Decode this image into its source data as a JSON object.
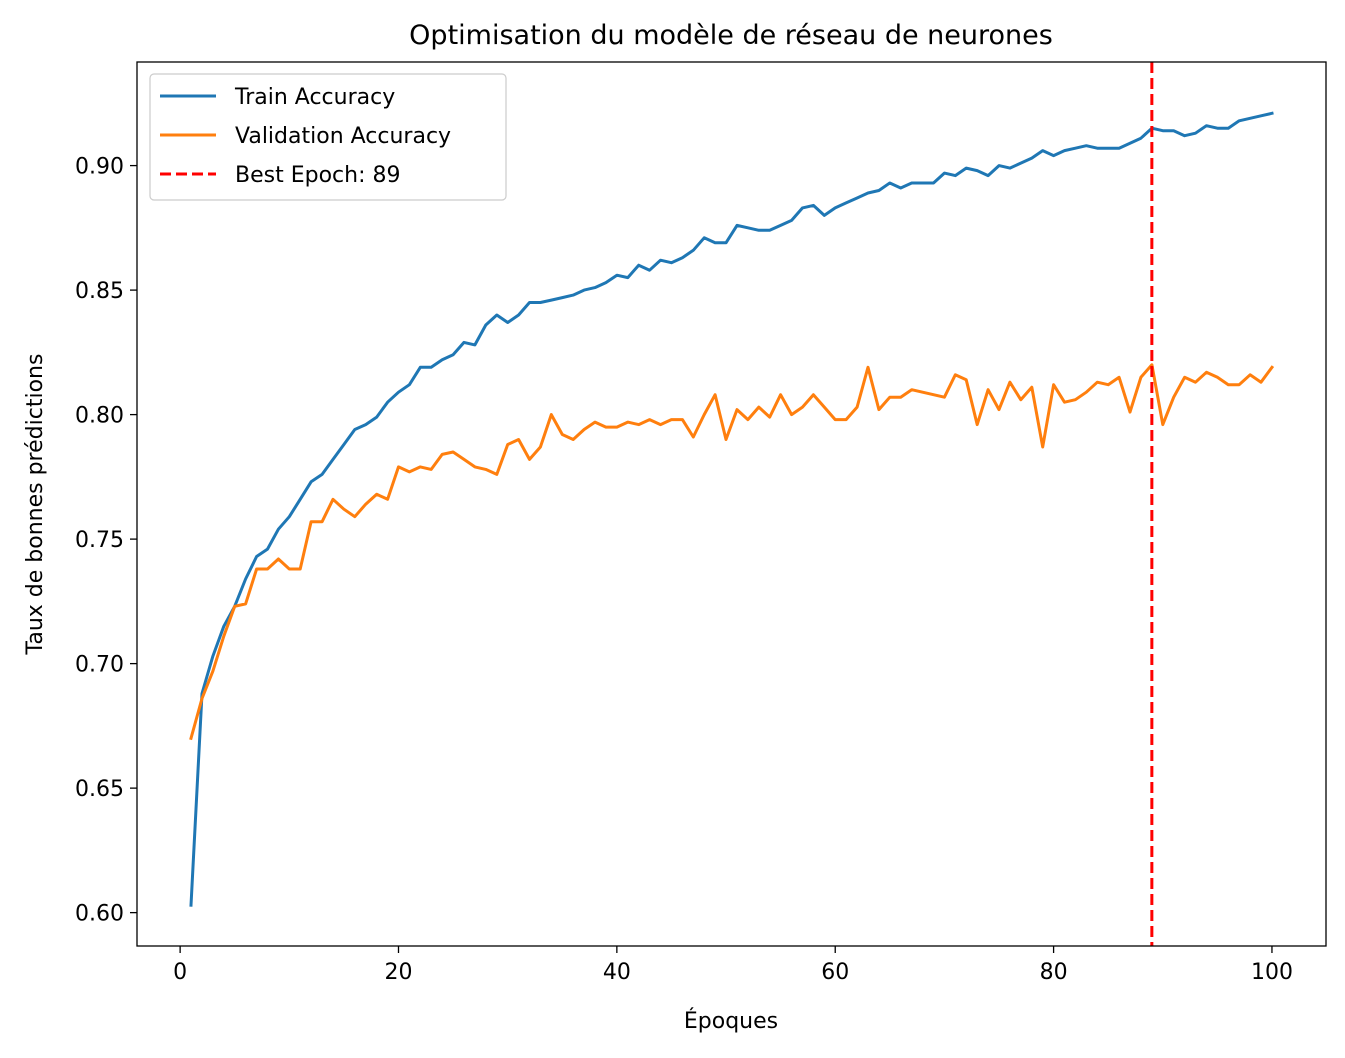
{
  "chart_data": {
    "type": "line",
    "title": "Optimisation du modèle de réseau de neurones",
    "xlabel": "Époques",
    "ylabel": "Taux de bonnes prédictions",
    "xlim": [
      -3.95,
      104.95
    ],
    "ylim": [
      0.5866,
      0.9416
    ],
    "xticks": [
      0,
      20,
      40,
      60,
      80,
      100
    ],
    "xtick_labels": [
      "0",
      "20",
      "40",
      "60",
      "80",
      "100"
    ],
    "yticks": [
      0.6,
      0.65,
      0.7,
      0.75,
      0.8,
      0.85,
      0.9
    ],
    "ytick_labels": [
      "0.60",
      "0.65",
      "0.70",
      "0.75",
      "0.80",
      "0.85",
      "0.90"
    ],
    "grid": false,
    "legend_position": "top-left",
    "x": [
      1,
      2,
      3,
      4,
      5,
      6,
      7,
      8,
      9,
      10,
      11,
      12,
      13,
      14,
      15,
      16,
      17,
      18,
      19,
      20,
      21,
      22,
      23,
      24,
      25,
      26,
      27,
      28,
      29,
      30,
      31,
      32,
      33,
      34,
      35,
      36,
      37,
      38,
      39,
      40,
      41,
      42,
      43,
      44,
      45,
      46,
      47,
      48,
      49,
      50,
      51,
      52,
      53,
      54,
      55,
      56,
      57,
      58,
      59,
      60,
      61,
      62,
      63,
      64,
      65,
      66,
      67,
      68,
      69,
      70,
      71,
      72,
      73,
      74,
      75,
      76,
      77,
      78,
      79,
      80,
      81,
      82,
      83,
      84,
      85,
      86,
      87,
      88,
      89,
      90,
      91,
      92,
      93,
      94,
      95,
      96,
      97,
      98,
      99,
      100
    ],
    "series": [
      {
        "name": "Train Accuracy",
        "color": "#1f77b4",
        "style": "solid",
        "values": [
          0.603,
          0.688,
          0.703,
          0.715,
          0.723,
          0.734,
          0.743,
          0.746,
          0.754,
          0.759,
          0.766,
          0.773,
          0.776,
          0.782,
          0.788,
          0.794,
          0.796,
          0.799,
          0.805,
          0.809,
          0.812,
          0.819,
          0.819,
          0.822,
          0.824,
          0.829,
          0.828,
          0.836,
          0.84,
          0.837,
          0.84,
          0.845,
          0.845,
          0.846,
          0.847,
          0.848,
          0.85,
          0.851,
          0.853,
          0.856,
          0.855,
          0.86,
          0.858,
          0.862,
          0.861,
          0.863,
          0.866,
          0.871,
          0.869,
          0.869,
          0.876,
          0.875,
          0.874,
          0.874,
          0.876,
          0.878,
          0.883,
          0.884,
          0.88,
          0.883,
          0.885,
          0.887,
          0.889,
          0.89,
          0.893,
          0.891,
          0.893,
          0.893,
          0.893,
          0.897,
          0.896,
          0.899,
          0.898,
          0.896,
          0.9,
          0.899,
          0.901,
          0.903,
          0.906,
          0.904,
          0.906,
          0.907,
          0.908,
          0.907,
          0.907,
          0.907,
          0.909,
          0.911,
          0.915,
          0.914,
          0.914,
          0.912,
          0.913,
          0.916,
          0.915,
          0.915,
          0.918,
          0.919,
          0.92,
          0.921
        ]
      },
      {
        "name": "Validation Accuracy",
        "color": "#ff7f0e",
        "style": "solid",
        "values": [
          0.67,
          0.686,
          0.697,
          0.711,
          0.723,
          0.724,
          0.738,
          0.738,
          0.742,
          0.738,
          0.738,
          0.757,
          0.757,
          0.766,
          0.762,
          0.759,
          0.764,
          0.768,
          0.766,
          0.779,
          0.777,
          0.779,
          0.778,
          0.784,
          0.785,
          0.782,
          0.779,
          0.778,
          0.776,
          0.788,
          0.79,
          0.782,
          0.787,
          0.8,
          0.792,
          0.79,
          0.794,
          0.797,
          0.795,
          0.795,
          0.797,
          0.796,
          0.798,
          0.796,
          0.798,
          0.798,
          0.791,
          0.8,
          0.808,
          0.79,
          0.802,
          0.798,
          0.803,
          0.799,
          0.808,
          0.8,
          0.803,
          0.808,
          0.803,
          0.798,
          0.798,
          0.803,
          0.819,
          0.802,
          0.807,
          0.807,
          0.81,
          0.809,
          0.808,
          0.807,
          0.816,
          0.814,
          0.796,
          0.81,
          0.802,
          0.813,
          0.806,
          0.811,
          0.787,
          0.812,
          0.805,
          0.806,
          0.809,
          0.813,
          0.812,
          0.815,
          0.801,
          0.815,
          0.82,
          0.796,
          0.807,
          0.815,
          0.813,
          0.817,
          0.815,
          0.812,
          0.812,
          0.816,
          0.813,
          0.819
        ]
      }
    ],
    "reference_lines": [
      {
        "name": "Best Epoch: 89",
        "orientation": "vertical",
        "x": 89,
        "color": "#ff0000",
        "style": "dashed"
      }
    ]
  }
}
